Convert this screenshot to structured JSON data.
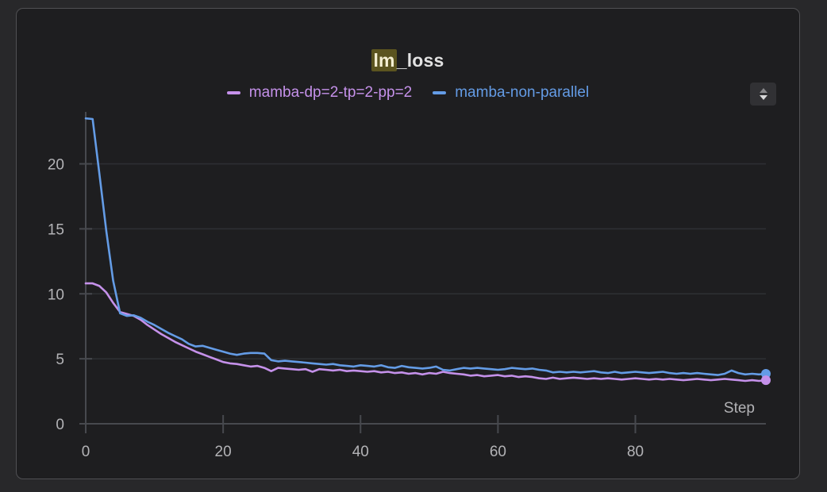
{
  "title": {
    "highlight": "lm",
    "rest": "_loss",
    "full": "lm_loss"
  },
  "icons": {
    "panel_stepper": "up-down-triangle-stepper"
  },
  "colors": {
    "page_bg": "#28282a",
    "card_bg": "#1e1e20",
    "card_border": "#505053",
    "title_text": "#e2e2e2",
    "title_highlight_bg": "#5b541f",
    "axis": "#47494e",
    "grid": "#2e3034",
    "tick_text": "#b3b3b6",
    "series_purple": "#c591ea",
    "series_blue": "#649ce6"
  },
  "chart_data": {
    "type": "line",
    "title": "lm_loss",
    "xlabel": "Step",
    "ylabel": "",
    "xlim": [
      0,
      99
    ],
    "ylim": [
      0,
      24
    ],
    "x_ticks": [
      0,
      20,
      40,
      60,
      80
    ],
    "y_ticks": [
      0,
      5,
      10,
      15,
      20
    ],
    "grid": "horizontal",
    "legend_position": "top-center",
    "x": [
      0,
      1,
      2,
      3,
      4,
      5,
      6,
      7,
      8,
      9,
      10,
      11,
      12,
      13,
      14,
      15,
      16,
      17,
      18,
      19,
      20,
      21,
      22,
      23,
      24,
      25,
      26,
      27,
      28,
      29,
      30,
      31,
      32,
      33,
      34,
      35,
      36,
      37,
      38,
      39,
      40,
      41,
      42,
      43,
      44,
      45,
      46,
      47,
      48,
      49,
      50,
      51,
      52,
      53,
      54,
      55,
      56,
      57,
      58,
      59,
      60,
      61,
      62,
      63,
      64,
      65,
      66,
      67,
      68,
      69,
      70,
      71,
      72,
      73,
      74,
      75,
      76,
      77,
      78,
      79,
      80,
      81,
      82,
      83,
      84,
      85,
      86,
      87,
      88,
      89,
      90,
      91,
      92,
      93,
      94,
      95,
      96,
      97,
      98,
      99
    ],
    "series": [
      {
        "name": "mamba-dp=2-tp=2-pp=2",
        "color": "#c591ea",
        "end_marker": true,
        "values": [
          10.8,
          10.8,
          10.6,
          10.1,
          9.3,
          8.6,
          8.45,
          8.3,
          8.0,
          7.6,
          7.25,
          6.9,
          6.6,
          6.3,
          6.05,
          5.8,
          5.55,
          5.35,
          5.15,
          4.95,
          4.75,
          4.65,
          4.6,
          4.5,
          4.4,
          4.45,
          4.3,
          4.05,
          4.3,
          4.25,
          4.2,
          4.15,
          4.2,
          4.0,
          4.2,
          4.15,
          4.1,
          4.15,
          4.05,
          4.1,
          4.05,
          4.0,
          4.05,
          3.95,
          4.0,
          3.9,
          3.95,
          3.85,
          3.9,
          3.8,
          3.9,
          3.85,
          4.0,
          3.9,
          3.85,
          3.8,
          3.7,
          3.75,
          3.65,
          3.7,
          3.75,
          3.65,
          3.7,
          3.6,
          3.65,
          3.6,
          3.5,
          3.45,
          3.55,
          3.45,
          3.5,
          3.55,
          3.5,
          3.45,
          3.5,
          3.45,
          3.5,
          3.45,
          3.4,
          3.45,
          3.5,
          3.45,
          3.4,
          3.45,
          3.4,
          3.45,
          3.4,
          3.35,
          3.4,
          3.45,
          3.4,
          3.35,
          3.4,
          3.45,
          3.4,
          3.35,
          3.3,
          3.35,
          3.3,
          3.35
        ]
      },
      {
        "name": "mamba-non-parallel",
        "color": "#649ce6",
        "end_marker": true,
        "values": [
          23.5,
          23.45,
          19.2,
          14.8,
          11.0,
          8.5,
          8.3,
          8.35,
          8.15,
          7.85,
          7.6,
          7.3,
          7.0,
          6.75,
          6.5,
          6.15,
          5.95,
          6.0,
          5.85,
          5.7,
          5.55,
          5.4,
          5.3,
          5.4,
          5.45,
          5.45,
          5.4,
          4.9,
          4.8,
          4.85,
          4.8,
          4.75,
          4.7,
          4.65,
          4.6,
          4.55,
          4.6,
          4.5,
          4.45,
          4.4,
          4.5,
          4.45,
          4.4,
          4.5,
          4.35,
          4.3,
          4.45,
          4.35,
          4.3,
          4.25,
          4.3,
          4.4,
          4.15,
          4.1,
          4.2,
          4.3,
          4.25,
          4.3,
          4.25,
          4.2,
          4.15,
          4.2,
          4.3,
          4.25,
          4.2,
          4.25,
          4.15,
          4.1,
          3.95,
          4.0,
          3.95,
          4.0,
          3.95,
          4.0,
          4.05,
          3.95,
          3.9,
          4.0,
          3.9,
          3.95,
          4.0,
          3.95,
          3.9,
          3.95,
          4.0,
          3.9,
          3.85,
          3.9,
          3.85,
          3.9,
          3.85,
          3.8,
          3.75,
          3.85,
          4.1,
          3.9,
          3.8,
          3.85,
          3.8,
          3.85
        ]
      }
    ]
  }
}
